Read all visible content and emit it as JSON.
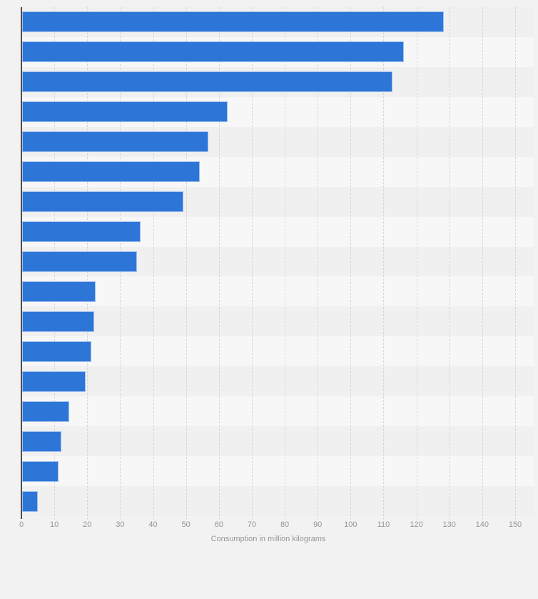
{
  "page": {
    "background_color": "#f2f2f2"
  },
  "chart_data": {
    "type": "bar",
    "orientation": "horizontal",
    "title": "",
    "xlabel": "Consumption in million kilograms",
    "ylabel": "",
    "xlim": [
      0,
      150
    ],
    "xticks": [
      0,
      10,
      20,
      30,
      40,
      50,
      60,
      70,
      80,
      90,
      100,
      110,
      120,
      130,
      140,
      150
    ],
    "grid": "vertical dashed gridlines every 10 units",
    "legend_position": "none",
    "category_labels_visible": false,
    "values": [
      128,
      116,
      112.5,
      62.5,
      56.5,
      54,
      49,
      36,
      35,
      22.3,
      22,
      21,
      19.3,
      14.4,
      12,
      11,
      4.7
    ]
  },
  "style": {
    "bar_color": "#2d76d8",
    "bar_border_color": "rgba(255,255,255,0.55)",
    "row_band_color_odd": "#f0f0f0",
    "row_band_color_even": "#f7f7f7",
    "gridline_color": "#d6d6d6",
    "axis_line_color": "#4d4d4d",
    "tick_label_color": "#969696",
    "axis_title_color": "#969696"
  }
}
